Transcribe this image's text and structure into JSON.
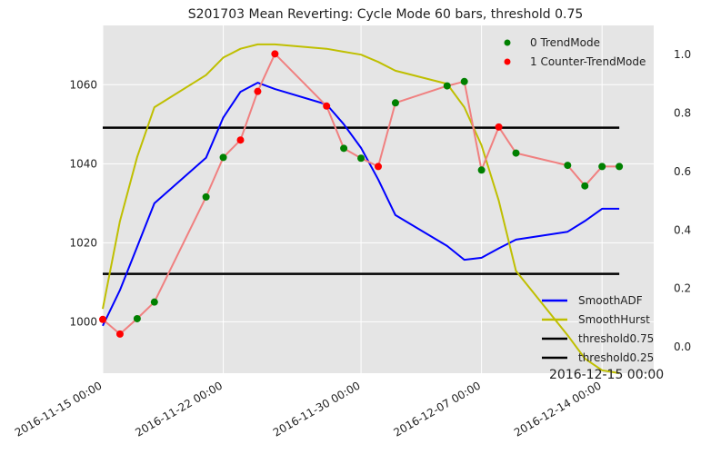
{
  "chart_data": {
    "type": "line",
    "title": "S201703 Mean Reverting: Cycle Mode 60 bars, threshold 0.75",
    "annotation": "2016-12-15 00:00",
    "x_type": "datetime",
    "x_start": "2016-11-15",
    "x_end": "2016-12-17",
    "x_ticks": [
      "2016-11-15 00:00",
      "2016-11-22 00:00",
      "2016-11-30 00:00",
      "2016-12-07 00:00",
      "2016-12-14 00:00"
    ],
    "x_tick_dates": [
      "2016-11-15",
      "2016-11-22",
      "2016-11-30",
      "2016-12-07",
      "2016-12-14"
    ],
    "y_left_lim": [
      987,
      1075
    ],
    "y_left_ticks": [
      1000,
      1020,
      1040,
      1060
    ],
    "y_right_lim": [
      -0.09,
      1.1
    ],
    "y_right_ticks": [
      "0.0",
      "0.2",
      "0.4",
      "0.6",
      "0.8",
      "1.0"
    ],
    "y_right_tick_values": [
      0.0,
      0.2,
      0.4,
      0.6,
      0.8,
      1.0
    ],
    "grid": true,
    "background": "#e5e5e5",
    "price": {
      "color": "#f08080",
      "dates": [
        "2016-11-15",
        "2016-11-16",
        "2016-11-17",
        "2016-11-18",
        "2016-11-21",
        "2016-11-22",
        "2016-11-23",
        "2016-11-24",
        "2016-11-25",
        "2016-11-28",
        "2016-11-29",
        "2016-11-30",
        "2016-12-01",
        "2016-12-02",
        "2016-12-05",
        "2016-12-06",
        "2016-12-07",
        "2016-12-08",
        "2016-12-09",
        "2016-12-12",
        "2016-12-13",
        "2016-12-14",
        "2016-12-15"
      ],
      "values": [
        1000.6,
        996.9,
        1000.8,
        1005.0,
        1031.6,
        1041.6,
        1046.0,
        1058.3,
        1067.8,
        1054.6,
        1043.9,
        1041.4,
        1039.3,
        1055.4,
        1059.7,
        1060.8,
        1038.4,
        1049.3,
        1042.7,
        1039.6,
        1034.4,
        1039.3,
        1039.3
      ],
      "modes": [
        1,
        1,
        0,
        0,
        0,
        0,
        1,
        1,
        1,
        1,
        0,
        0,
        1,
        0,
        0,
        0,
        0,
        1,
        0,
        0,
        0,
        0,
        0
      ]
    },
    "series": [
      {
        "name": "SmoothADF",
        "axis": "left",
        "color": "#0000ff",
        "dates": [
          "2016-11-15",
          "2016-11-16",
          "2016-11-17",
          "2016-11-18",
          "2016-11-21",
          "2016-11-22",
          "2016-11-23",
          "2016-11-24",
          "2016-11-25",
          "2016-11-28",
          "2016-11-29",
          "2016-11-30",
          "2016-12-01",
          "2016-12-02",
          "2016-12-05",
          "2016-12-06",
          "2016-12-07",
          "2016-12-08",
          "2016-12-09",
          "2016-12-12",
          "2016-12-13",
          "2016-12-14",
          "2016-12-15"
        ],
        "values": [
          999.0,
          1008.0,
          1019.0,
          1030.0,
          1041.5,
          1051.7,
          1058.2,
          1060.5,
          1058.9,
          1055.0,
          1050.0,
          1044.0,
          1036.0,
          1027.0,
          1019.2,
          1015.7,
          1016.2,
          1018.6,
          1020.8,
          1022.8,
          1025.5,
          1028.6,
          1028.6
        ]
      },
      {
        "name": "SmoothHurst",
        "axis": "right",
        "color": "#bfbf00",
        "dates": [
          "2016-11-15",
          "2016-11-16",
          "2016-11-17",
          "2016-11-18",
          "2016-11-21",
          "2016-11-22",
          "2016-11-23",
          "2016-11-24",
          "2016-11-25",
          "2016-11-28",
          "2016-11-29",
          "2016-11-30",
          "2016-12-01",
          "2016-12-02",
          "2016-12-05",
          "2016-12-06",
          "2016-12-07",
          "2016-12-08",
          "2016-12-09",
          "2016-12-12",
          "2016-12-13",
          "2016-12-14",
          "2016-12-15"
        ],
        "values": [
          0.13,
          0.43,
          0.65,
          0.82,
          0.93,
          0.99,
          1.02,
          1.035,
          1.035,
          1.02,
          1.01,
          1.0,
          0.975,
          0.945,
          0.9,
          0.82,
          0.69,
          0.5,
          0.26,
          0.04,
          -0.04,
          -0.08,
          -0.09
        ]
      },
      {
        "name": "threshold0.75",
        "axis": "right",
        "color": "#000000",
        "value": 0.75
      },
      {
        "name": "threshold0.25",
        "axis": "right",
        "color": "#000000",
        "value": 0.25
      }
    ],
    "markers_legend": [
      {
        "label": "0 TrendMode",
        "color": "#008000"
      },
      {
        "label": "1 Counter-TrendMode",
        "color": "#ff0000"
      }
    ],
    "lines_legend": [
      {
        "label": "SmoothADF",
        "color": "#0000ff"
      },
      {
        "label": "SmoothHurst",
        "color": "#bfbf00"
      },
      {
        "label": "threshold0.75",
        "color": "#000000"
      },
      {
        "label": "threshold0.25",
        "color": "#000000"
      }
    ]
  }
}
